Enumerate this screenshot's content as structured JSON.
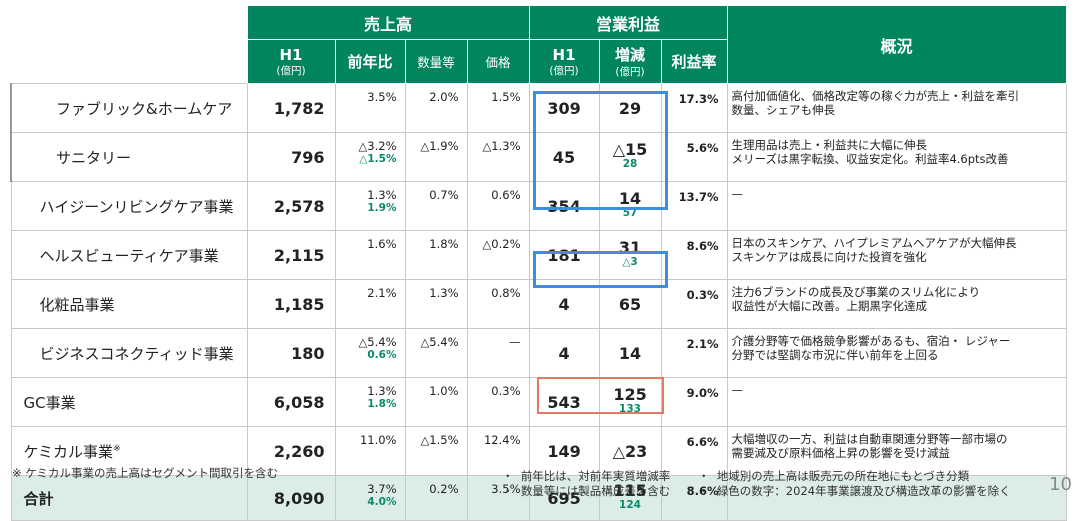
{
  "header": {
    "sales_group": "売上高",
    "op_group": "営業利益",
    "overview": "概況",
    "h1": "H1",
    "unit": "(億円)",
    "yoy": "前年比",
    "volume": "数量等",
    "price": "価格",
    "change": "増減",
    "margin": "利益率"
  },
  "rows": [
    {
      "name": "ファブリック&ホームケア",
      "sales": "1,782",
      "yoy": "3.5%",
      "yoy_g": "",
      "vol": "2.0%",
      "price": "1.5%",
      "op": "309",
      "chg": "29",
      "chg_g": "",
      "margin": "17.3%",
      "desc1": "高付加価値化、価格改定等の稼ぐ力が売上・利益を牽引",
      "desc2": "数量、シェアも伸長"
    },
    {
      "name": "サニタリー",
      "sales": "796",
      "yoy": "△3.2%",
      "yoy_g": "△1.5%",
      "vol": "△1.9%",
      "price": "△1.3%",
      "op": "45",
      "chg": "△15",
      "chg_g": "28",
      "margin": "5.6%",
      "desc1": "生理用品は売上・利益共に大幅に伸長",
      "desc2": "メリーズは黒字転換、収益安定化。利益率4.6pts改善"
    },
    {
      "name": "ハイジーンリビングケア事業",
      "sales": "2,578",
      "yoy": "1.3%",
      "yoy_g": "1.9%",
      "vol": "0.7%",
      "price": "0.6%",
      "op": "354",
      "chg": "14",
      "chg_g": "57",
      "margin": "13.7%",
      "desc1": "—",
      "desc2": ""
    },
    {
      "name": "ヘルスビューティケア事業",
      "sales": "2,115",
      "yoy": "1.6%",
      "yoy_g": "",
      "vol": "1.8%",
      "price": "△0.2%",
      "op": "181",
      "chg": "31",
      "chg_g": "△3",
      "margin": "8.6%",
      "desc1": "日本のスキンケア、ハイプレミアムヘアケアが大幅伸長",
      "desc2": "スキンケアは成長に向けた投資を強化"
    },
    {
      "name": "化粧品事業",
      "sales": "1,185",
      "yoy": "2.1%",
      "yoy_g": "",
      "vol": "1.3%",
      "price": "0.8%",
      "op": "4",
      "chg": "65",
      "chg_g": "",
      "margin": "0.3%",
      "desc1": "注力6ブランドの成長及び事業のスリム化により",
      "desc2": "収益性が大幅に改善。上期黒字化達成"
    },
    {
      "name": "ビジネスコネクティッド事業",
      "sales": "180",
      "yoy": "△5.4%",
      "yoy_g": "0.6%",
      "vol": "△5.4%",
      "price": "—",
      "op": "4",
      "chg": "14",
      "chg_g": "",
      "margin": "2.1%",
      "desc1": "介護分野等で価格競争影響があるも、宿泊・ レジャー",
      "desc2": "分野では堅調な市況に伴い前年を上回る"
    },
    {
      "name": "GC事業",
      "sales": "6,058",
      "yoy": "1.3%",
      "yoy_g": "1.8%",
      "vol": "1.0%",
      "price": "0.3%",
      "op": "543",
      "chg": "125",
      "chg_g": "133",
      "margin": "9.0%",
      "desc1": "—",
      "desc2": ""
    },
    {
      "name": "ケミカル事業",
      "name_sup": "※",
      "sales": "2,260",
      "yoy": "11.0%",
      "yoy_g": "",
      "vol": "△1.5%",
      "price": "12.4%",
      "op": "149",
      "chg": "△23",
      "chg_g": "",
      "margin": "6.6%",
      "desc1": "大幅増収の一方、利益は自動車関連分野等一部市場の",
      "desc2": "需要減及び原料価格上昇の影響を受け減益"
    },
    {
      "name": "合計",
      "sales": "8,090",
      "yoy": "3.7%",
      "yoy_g": "4.0%",
      "vol": "0.2%",
      "price": "3.5%",
      "op": "695",
      "chg": "115",
      "chg_g": "124",
      "margin": "8.6%",
      "desc1": "",
      "desc2": ""
    }
  ],
  "footer": {
    "note": "※ ケミカル事業の売上高はセグメント間取引を含む",
    "b1": "前年比は、対前年実質増減率",
    "b2": "数量等には製品構成差を含む",
    "b3": "地域別の売上高は販売元の所在地にもとづき分類",
    "b4": "緑色の数字：2024年事業譲渡及び構造改革の影響を除く",
    "page": "10"
  },
  "colors": {
    "header_green": "#00855f",
    "highlight_blue": "#3b8ee0",
    "highlight_red": "#e07a65",
    "adjusted_green": "#0a8a6a",
    "total_row": "#dbede6"
  }
}
